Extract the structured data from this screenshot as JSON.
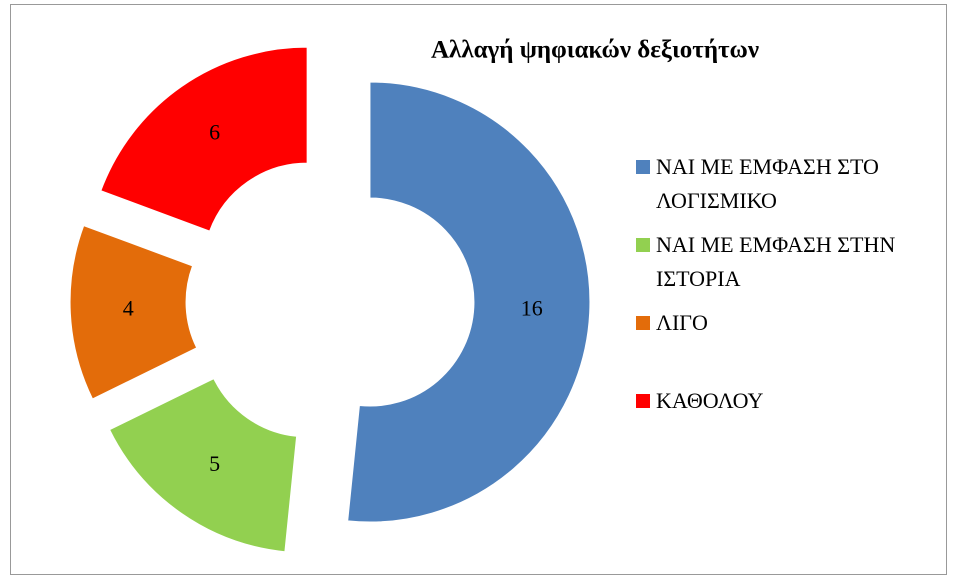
{
  "chart_data": {
    "type": "donut",
    "title": "Αλλαγή ψηφιακών δεξιοτήτων",
    "categories": [
      "ΝΑΙ ΜΕ ΕΜΦΑΣΗ ΣΤΟ ΛΟΓΙΣΜΙΚΟ",
      "ΝΑΙ ΜΕ ΕΜΦΑΣΗ ΣΤΗΝ ΙΣΤΟΡΙΑ",
      "ΛΙΓΟ",
      "ΚΑΘΟΛΟΥ"
    ],
    "values": [
      16,
      5,
      4,
      6
    ],
    "colors": [
      "#4f81bd",
      "#92d050",
      "#e36c0a",
      "#ff0000"
    ],
    "legend": "right"
  }
}
